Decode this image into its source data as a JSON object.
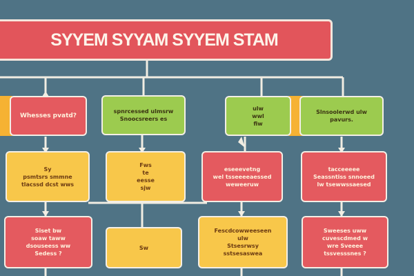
{
  "title": "SYYEM SYYAM SYYEM STAM",
  "colors": {
    "background": "#4f7385",
    "red": "#e45a5f",
    "green": "#9ccb4f",
    "yellow": "#f8c74a",
    "connector": "#f1ede2"
  },
  "nodes": {
    "r1_a": [
      "Whesses pvatd?"
    ],
    "r1_b": [
      "spnrcessed ulmsrw",
      "Snoocsreers es"
    ],
    "r1_c": [
      "ulw",
      "wwl",
      "fiw"
    ],
    "r1_d": [
      "Slnsoolerwd ulw",
      "pavurs."
    ],
    "r2_a": [
      "Sy",
      "psmtsrs smmne",
      "tlacssd dcst wws"
    ],
    "r2_b": [
      "Fws",
      "te",
      "eesse",
      "sjw"
    ],
    "r2_c": [
      "eseeevetng",
      "wel tsseeeeaessed",
      "weweeruw"
    ],
    "r2_d": [
      "tacceeeee",
      "Seassntiss snnoeed",
      "lw tsewwssaesed"
    ],
    "r3_a": [
      "Siset bw",
      "soaw taww",
      "dsouseess ww",
      "Sedess ?"
    ],
    "r3_b": [
      "Sw"
    ],
    "r3_c": [
      "Fescdcowweeseen",
      "ulw",
      "Stsesrwsy",
      "sstsesaswea"
    ],
    "r3_d": [
      "Sweeses uww",
      "cuvescdmed w",
      "wre Sveeee",
      "tssvesssnes ?"
    ]
  }
}
